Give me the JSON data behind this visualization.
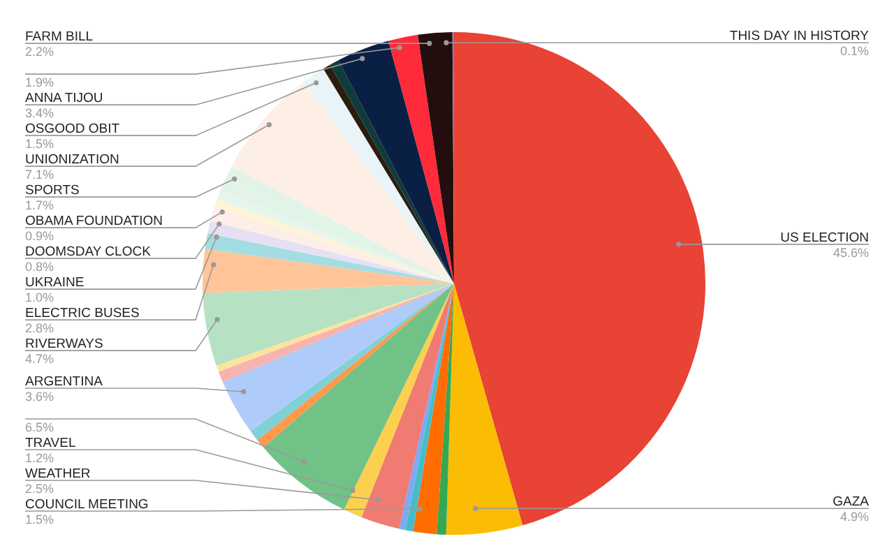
{
  "chart_data": {
    "type": "pie",
    "categories": [
      "US ELECTION",
      "GAZA",
      null,
      "COUNCIL MEETING",
      null,
      null,
      "WEATHER",
      "TRAVEL",
      null,
      null,
      null,
      "ARGENTINA",
      null,
      null,
      "RIVERWAYS",
      "ELECTRIC BUSES",
      "UKRAINE",
      "DOOMSDAY CLOCK",
      "OBAMA FOUNDATION",
      null,
      null,
      "SPORTS",
      "UNIONIZATION",
      "OSGOOD OBIT",
      null,
      null,
      "ANNA TIJOU",
      null,
      "FARM BILL",
      "THIS DAY IN HISTORY"
    ],
    "values": [
      45.6,
      4.9,
      0.6,
      1.5,
      0.5,
      0.4,
      2.5,
      1.2,
      6.5,
      0.6,
      0.7,
      3.6,
      0.7,
      0.4,
      4.7,
      2.8,
      1.0,
      0.8,
      0.9,
      0.5,
      0.6,
      1.7,
      7.1,
      1.5,
      0.5,
      0.6,
      3.4,
      1.9,
      2.2,
      0.1
    ],
    "value_labels": [
      "45.6%",
      "4.9%",
      null,
      "1.5%",
      null,
      null,
      "2.5%",
      "1.2%",
      "6.5%",
      null,
      null,
      "3.6%",
      null,
      null,
      "4.7%",
      "2.8%",
      "1.0%",
      "0.8%",
      "0.9%",
      null,
      null,
      "1.7%",
      "7.1%",
      "1.5%",
      null,
      null,
      "3.4%",
      "1.9%",
      "2.2%",
      "0.1%"
    ],
    "colors": [
      "#e84335",
      "#fbbc04",
      "#34a853",
      "#ff6d01",
      "#46bdc6",
      "#7baaf7",
      "#f07b72",
      "#fcd04f",
      "#71c287",
      "#ff994d",
      "#7ed1d7",
      "#afcbfa",
      "#f7b4ae",
      "#fde49b",
      "#b7e1c3",
      "#ffc599",
      "#a3dde1",
      "#e6e0f5",
      "#fdeee8",
      "#fff4d6",
      "#e8f5ec",
      "#e2f3e8",
      "#fdefe5",
      "#e8f4f8",
      "#2b1d0e",
      "#0f3b3b",
      "#0a1f44",
      "#ff2a3a",
      "#240d0d",
      "#8e7cc3"
    ]
  }
}
